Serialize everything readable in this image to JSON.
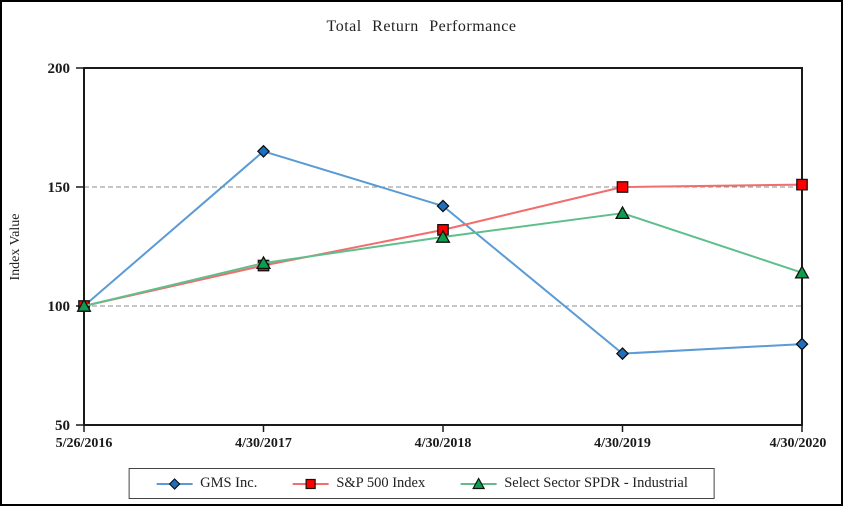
{
  "chart_data": {
    "type": "line",
    "title": "Total Return Performance",
    "xlabel": "",
    "ylabel": "Index Value",
    "categories": [
      "5/26/2016",
      "4/30/2017",
      "4/30/2018",
      "4/30/2019",
      "4/30/2020"
    ],
    "ylim": [
      50,
      200
    ],
    "y_ticks": [
      200,
      150,
      100,
      50
    ],
    "gridline_values": [
      150,
      100
    ],
    "grid": "dashed horizontal at 100 and 150",
    "legend_position": "bottom",
    "colors": {
      "grid": "#8c8c8c",
      "axis": "#1a1a1a",
      "marker_outline": "#111111"
    },
    "series": [
      {
        "name": "GMS Inc.",
        "marker": "diamond",
        "line_color": "#5B9BD5",
        "marker_color": "#1F6FC0",
        "values": [
          100,
          165,
          142,
          80,
          84
        ]
      },
      {
        "name": "S&P 500 Index",
        "marker": "square",
        "line_color": "#F26D6D",
        "marker_color": "#FF0000",
        "values": [
          100,
          117,
          132,
          150,
          151
        ]
      },
      {
        "name": "Select Sector SPDR - Industrial",
        "marker": "triangle",
        "line_color": "#5FBF8C",
        "marker_color": "#0C9D4D",
        "values": [
          100,
          118,
          129,
          139,
          114
        ]
      }
    ]
  }
}
